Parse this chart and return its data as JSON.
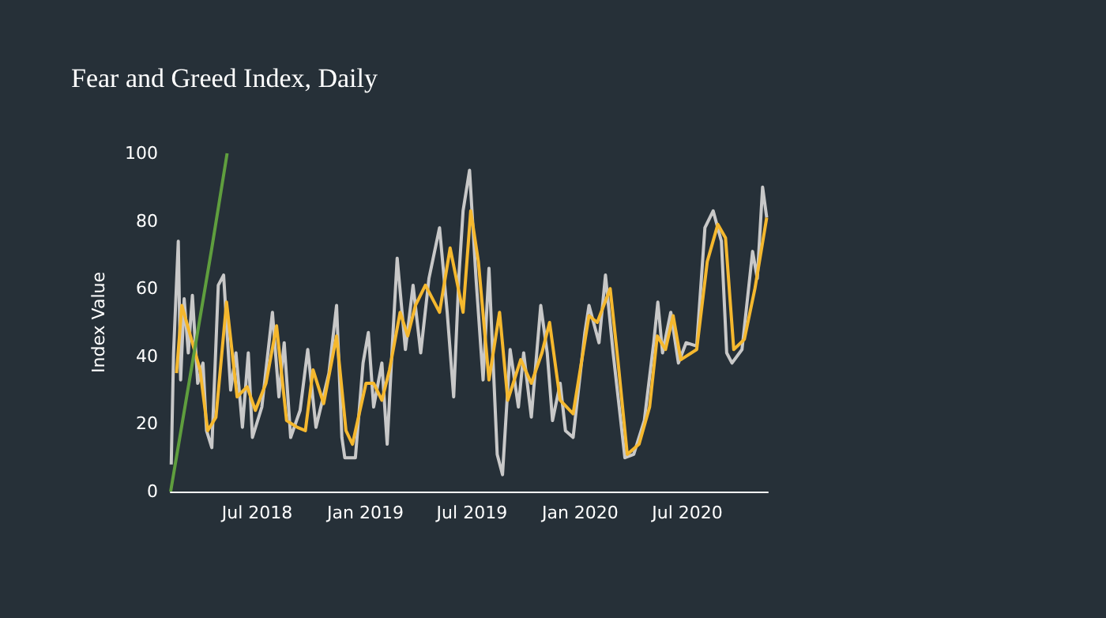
{
  "chart_data": {
    "type": "line",
    "title": "Fear and Greed Index, Daily",
    "ylabel": "Index Value",
    "marker": "none",
    "grid": false,
    "xlim": [
      "2018-02-04",
      "2020-11-15"
    ],
    "xticks": [
      {
        "value": "2018-07-01",
        "label": "Jul 2018"
      },
      {
        "value": "2019-01-01",
        "label": "Jan 2019"
      },
      {
        "value": "2019-07-01",
        "label": "Jul 2019"
      },
      {
        "value": "2020-01-01",
        "label": "Jan 2020"
      },
      {
        "value": "2020-07-01",
        "label": "Jul 2020"
      }
    ],
    "ylim": [
      0,
      100
    ],
    "yticks": [
      0,
      20,
      40,
      60,
      80,
      100
    ],
    "series": [
      {
        "color": "#c8c8c8",
        "x": [
          "2018-02-05",
          "2018-02-09",
          "2018-02-17",
          "2018-02-21",
          "2018-02-27",
          "2018-03-06",
          "2018-03-13",
          "2018-03-22",
          "2018-03-31",
          "2018-04-06",
          "2018-04-15",
          "2018-04-26",
          "2018-05-05",
          "2018-05-17",
          "2018-05-26",
          "2018-06-06",
          "2018-06-16",
          "2018-06-23",
          "2018-07-09",
          "2018-07-27",
          "2018-08-07",
          "2018-08-16",
          "2018-08-27",
          "2018-09-12",
          "2018-09-25",
          "2018-10-09",
          "2018-10-31",
          "2018-11-13",
          "2018-11-22",
          "2018-11-27",
          "2018-12-15",
          "2018-12-28",
          "2019-01-06",
          "2019-01-15",
          "2019-01-29",
          "2019-02-07",
          "2019-02-16",
          "2019-02-24",
          "2019-03-10",
          "2019-03-23",
          "2019-04-05",
          "2019-04-19",
          "2019-05-07",
          "2019-05-20",
          "2019-05-31",
          "2019-06-09",
          "2019-06-16",
          "2019-06-27",
          "2019-07-08",
          "2019-07-20",
          "2019-07-30",
          "2019-08-13",
          "2019-08-22",
          "2019-09-04",
          "2019-09-18",
          "2019-09-27",
          "2019-10-10",
          "2019-10-26",
          "2019-11-06",
          "2019-11-15",
          "2019-11-28",
          "2019-12-07",
          "2019-12-20",
          "2020-01-09",
          "2020-01-16",
          "2020-02-02",
          "2020-02-13",
          "2020-02-26",
          "2020-03-17",
          "2020-04-01",
          "2020-04-19",
          "2020-05-05",
          "2020-05-12",
          "2020-05-20",
          "2020-06-03",
          "2020-06-16",
          "2020-06-29",
          "2020-07-17",
          "2020-07-31",
          "2020-08-14",
          "2020-08-28",
          "2020-09-06",
          "2020-09-15",
          "2020-10-02",
          "2020-10-20",
          "2020-10-28",
          "2020-11-06",
          "2020-11-13"
        ],
        "values": [
          8,
          41,
          74,
          33,
          57,
          41,
          58,
          32,
          38,
          18,
          13,
          61,
          64,
          30,
          41,
          19,
          41,
          16,
          25,
          53,
          28,
          44,
          16,
          24,
          42,
          19,
          35,
          55,
          16,
          10,
          10,
          38,
          47,
          25,
          38,
          14,
          44,
          69,
          42,
          61,
          41,
          63,
          78,
          53,
          28,
          64,
          83,
          95,
          63,
          33,
          66,
          11,
          5,
          42,
          25,
          41,
          22,
          55,
          41,
          21,
          32,
          18,
          16,
          47,
          55,
          44,
          64,
          41,
          10,
          11,
          21,
          44,
          56,
          41,
          53,
          38,
          44,
          43,
          78,
          83,
          74,
          41,
          38,
          42,
          71,
          63,
          90,
          81
        ]
      },
      {
        "color": "#f5b82e",
        "x": [
          "2018-02-14",
          "2018-02-23",
          "2018-03-13",
          "2018-03-26",
          "2018-04-08",
          "2018-04-22",
          "2018-05-10",
          "2018-05-28",
          "2018-06-14",
          "2018-06-28",
          "2018-07-16",
          "2018-08-03",
          "2018-08-20",
          "2018-09-07",
          "2018-09-21",
          "2018-10-04",
          "2018-10-22",
          "2018-11-13",
          "2018-11-29",
          "2018-12-10",
          "2019-01-02",
          "2019-01-15",
          "2019-01-29",
          "2019-02-11",
          "2019-03-01",
          "2019-03-14",
          "2019-03-27",
          "2019-04-13",
          "2019-05-07",
          "2019-05-25",
          "2019-06-16",
          "2019-06-29",
          "2019-07-12",
          "2019-07-30",
          "2019-08-17",
          "2019-08-31",
          "2019-09-22",
          "2019-10-10",
          "2019-10-28",
          "2019-11-10",
          "2019-11-28",
          "2019-12-20",
          "2020-01-16",
          "2020-01-30",
          "2020-02-21",
          "2020-03-05",
          "2020-03-21",
          "2020-04-10",
          "2020-04-28",
          "2020-05-11",
          "2020-05-25",
          "2020-06-07",
          "2020-06-20",
          "2020-07-17",
          "2020-08-04",
          "2020-08-22",
          "2020-09-04",
          "2020-09-18",
          "2020-10-06",
          "2020-10-24",
          "2020-11-13"
        ],
        "values": [
          35,
          55,
          44,
          36,
          18,
          22,
          56,
          28,
          31,
          24,
          32,
          49,
          21,
          19,
          18,
          36,
          26,
          46,
          18,
          14,
          32,
          32,
          27,
          36,
          53,
          46,
          55,
          61,
          53,
          72,
          53,
          83,
          68,
          33,
          53,
          27,
          39,
          32,
          41,
          50,
          27,
          23,
          52,
          50,
          60,
          39,
          11,
          14,
          25,
          46,
          42,
          52,
          39,
          42,
          68,
          79,
          75,
          42,
          45,
          60,
          81
        ]
      },
      {
        "color": "#5f9e3e",
        "x": [
          "2018-02-04",
          "2018-04-15",
          "2018-05-11"
        ],
        "values": [
          0,
          72,
          100
        ]
      }
    ]
  }
}
